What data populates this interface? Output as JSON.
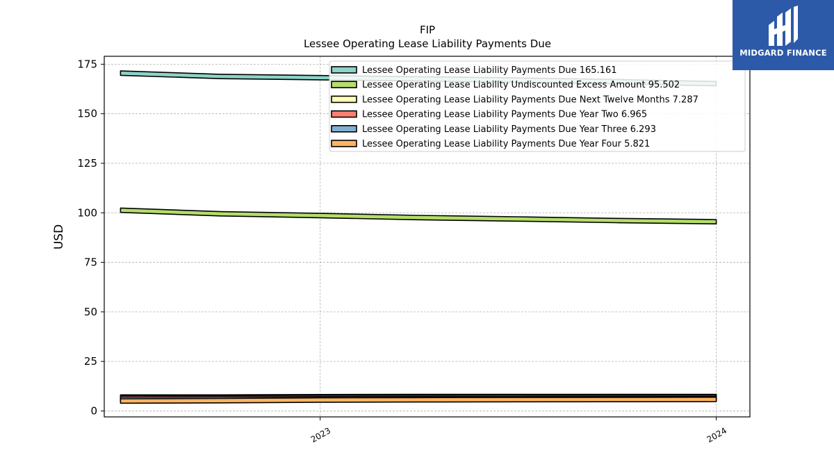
{
  "chart_data": {
    "type": "area",
    "title": "FIP",
    "subtitle": "Lessee Operating Lease Liability Payments Due",
    "xlabel": "",
    "ylabel": "USD",
    "ylim": [
      -3,
      179
    ],
    "yticks": [
      0,
      25,
      50,
      75,
      100,
      125,
      150,
      175
    ],
    "x": [
      "2022-06-30",
      "2022-09-30",
      "2022-12-31",
      "2023-03-31",
      "2023-06-30",
      "2023-09-30",
      "2023-12-31"
    ],
    "xticks": [
      {
        "label": "2023",
        "date": "2022-12-31"
      },
      {
        "label": "2024",
        "date": "2023-12-31"
      }
    ],
    "grid": true,
    "legend": "top-right",
    "series": [
      {
        "name": "Lessee Operating Lease Liability Payments Due",
        "legend_value": "165.161",
        "color": "#8dd3c7",
        "values": [
          170.5,
          168.8,
          168.2,
          167.6,
          167.0,
          166.2,
          165.161
        ]
      },
      {
        "name": "Lessee Operating Lease Liability Undiscounted Excess Amount",
        "legend_value": "95.502",
        "color": "#b3de69",
        "values": [
          101.3,
          99.5,
          98.6,
          97.6,
          96.9,
          96.1,
          95.502
        ]
      },
      {
        "name": "Lessee Operating Lease Liability Payments Due Next Twelve Months",
        "legend_value": "7.287",
        "color": "#ffffb3",
        "values": [
          7.0,
          7.0,
          7.2,
          7.25,
          7.27,
          7.28,
          7.287
        ]
      },
      {
        "name": "Lessee Operating Lease Liability Payments Due Year Two",
        "legend_value": "6.965",
        "color": "#fb8072",
        "values": [
          6.6,
          6.7,
          6.85,
          6.9,
          6.93,
          6.95,
          6.965
        ]
      },
      {
        "name": "Lessee Operating Lease Liability Payments Due Year Three",
        "legend_value": "6.293",
        "color": "#80b1d3",
        "values": [
          5.9,
          6.0,
          6.15,
          6.2,
          6.25,
          6.27,
          6.293
        ]
      },
      {
        "name": "Lessee Operating Lease Liability Payments Due Year Four",
        "legend_value": "5.821",
        "color": "#fdb462",
        "values": [
          5.0,
          5.2,
          5.5,
          5.6,
          5.7,
          5.75,
          5.821
        ]
      }
    ]
  },
  "logo": {
    "text": "MIDGARD FINANCE"
  }
}
